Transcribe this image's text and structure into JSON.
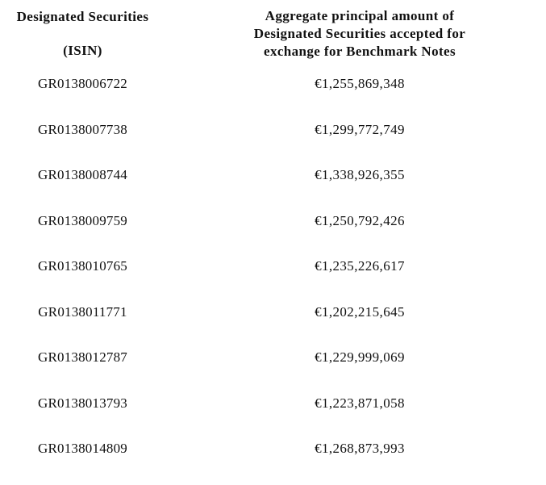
{
  "header": {
    "col1_line1": "Designated Securities",
    "col1_line2": "(ISIN)",
    "col2_line1": "Aggregate principal amount of",
    "col2_line2": "Designated Securities accepted for",
    "col2_line3": "exchange for Benchmark Notes"
  },
  "rows": [
    {
      "isin": "GR0138006722",
      "amount": "€1,255,869,348"
    },
    {
      "isin": "GR0138007738",
      "amount": "€1,299,772,749"
    },
    {
      "isin": "GR0138008744",
      "amount": "€1,338,926,355"
    },
    {
      "isin": "GR0138009759",
      "amount": "€1,250,792,426"
    },
    {
      "isin": "GR0138010765",
      "amount": "€1,235,226,617"
    },
    {
      "isin": "GR0138011771",
      "amount": "€1,202,215,645"
    },
    {
      "isin": "GR0138012787",
      "amount": "€1,229,999,069"
    },
    {
      "isin": "GR0138013793",
      "amount": "€1,223,871,058"
    },
    {
      "isin": "GR0138014809",
      "amount": "€1,268,873,993"
    }
  ]
}
